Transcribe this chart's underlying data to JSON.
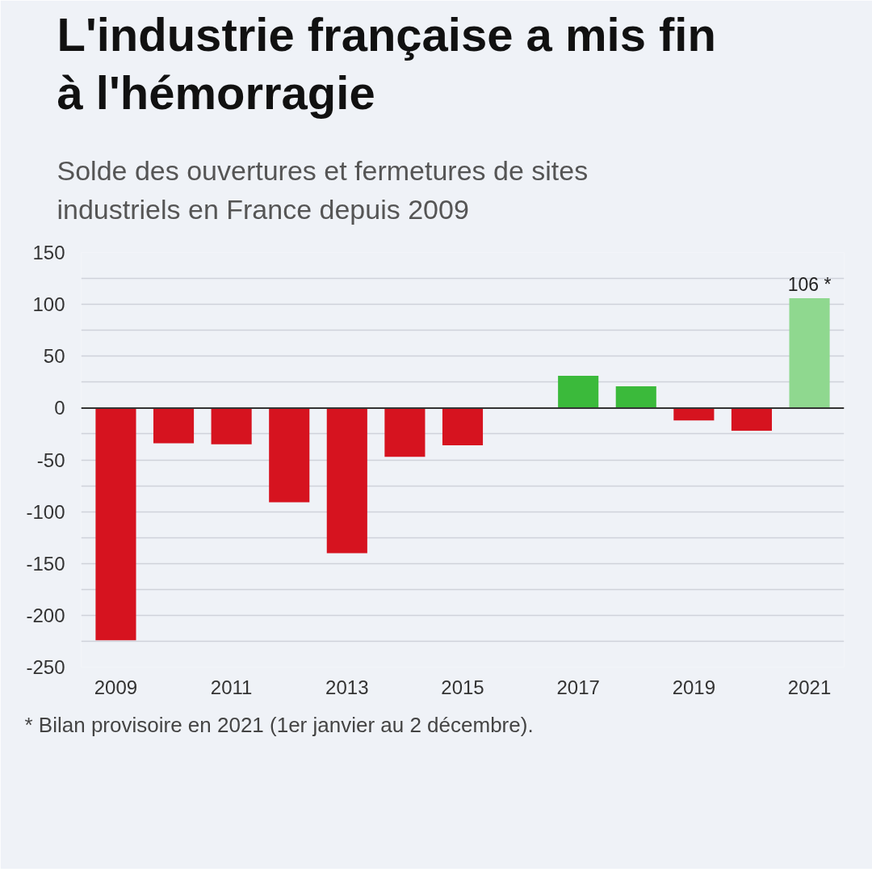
{
  "chart_data": {
    "type": "bar",
    "title": "L'industrie française a mis fin à l'hémorragie",
    "subtitle": "Solde des ouvertures et fermetures de sites industriels en France depuis 2009",
    "categories": [
      "2009",
      null,
      "2011",
      null,
      "2013",
      null,
      "2015",
      null,
      "2017",
      null,
      "2019",
      null,
      "2021"
    ],
    "values": [
      -224,
      -34,
      -35,
      -91,
      -140,
      -47,
      -36,
      null,
      31,
      21,
      -12,
      -22,
      106
    ],
    "colors": [
      "#d6131f",
      "#d6131f",
      "#d6131f",
      "#d6131f",
      "#d6131f",
      "#d6131f",
      "#d6131f",
      null,
      "#3bba3b",
      "#3bba3b",
      "#d6131f",
      "#d6131f",
      "#8fd88f"
    ],
    "value_labels": [
      null,
      null,
      null,
      null,
      null,
      null,
      null,
      null,
      null,
      null,
      null,
      null,
      "106 *"
    ],
    "ylim": [
      -250,
      150
    ],
    "yticks": [
      -250,
      {
        "value": -225,
        "label": null
      },
      -200,
      {
        "value": -175,
        "label": null
      },
      -150,
      {
        "value": -125,
        "label": null
      },
      -100,
      {
        "value": -75,
        "label": null
      },
      -50,
      {
        "value": -25,
        "label": null
      },
      0,
      {
        "value": 25,
        "label": null
      },
      50,
      {
        "value": 75,
        "label": null
      },
      100,
      {
        "value": 125,
        "label": null
      },
      150
    ],
    "grid": "y",
    "ref_lines": [
      {
        "axis": "y",
        "value": 0,
        "color": "#333333"
      }
    ],
    "annotations": [
      "* Bilan provisoire en 2021 (1er janvier au 2 décembre)."
    ]
  }
}
